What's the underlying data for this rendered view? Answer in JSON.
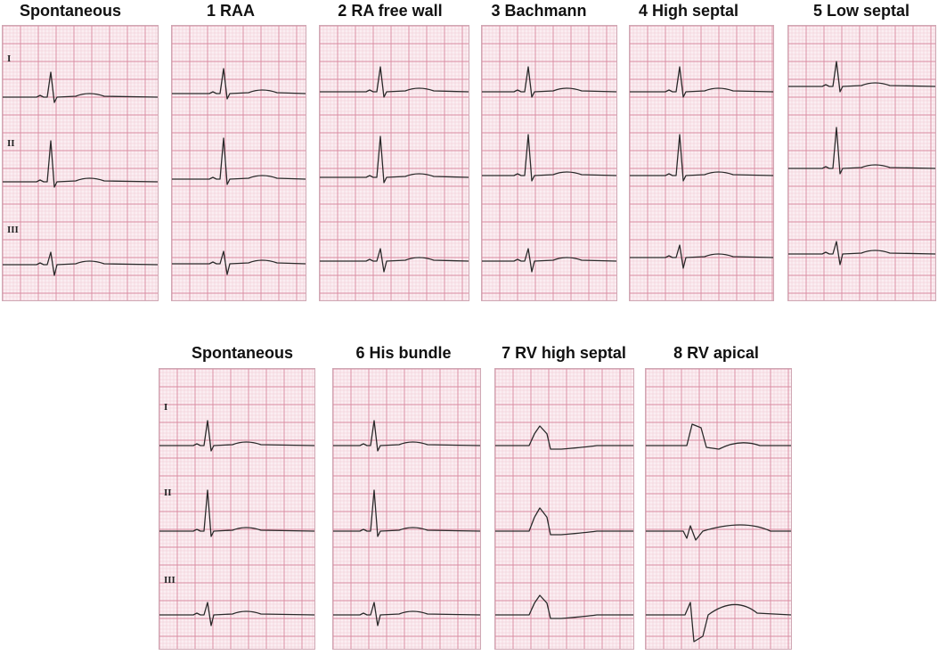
{
  "grid": {
    "minor_color": "#f0c9d3",
    "major_color": "#d98aa0",
    "background": "#fbeef2",
    "trace_color": "#2a2a2a"
  },
  "top_row": {
    "panels": [
      {
        "title": "Spontaneous",
        "leads": [
          "I",
          "II",
          "III"
        ]
      },
      {
        "title": "1 RAA"
      },
      {
        "title": "2 RA free wall"
      },
      {
        "title": "3 Bachmann"
      },
      {
        "title": "4 High septal"
      },
      {
        "title": "5 Low septal"
      }
    ]
  },
  "bottom_row": {
    "panels": [
      {
        "title": "Spontaneous",
        "leads": [
          "I",
          "II",
          "III"
        ]
      },
      {
        "title": "6 His bundle"
      },
      {
        "title": "7 RV high septal"
      },
      {
        "title": "8 RV apical"
      }
    ]
  }
}
